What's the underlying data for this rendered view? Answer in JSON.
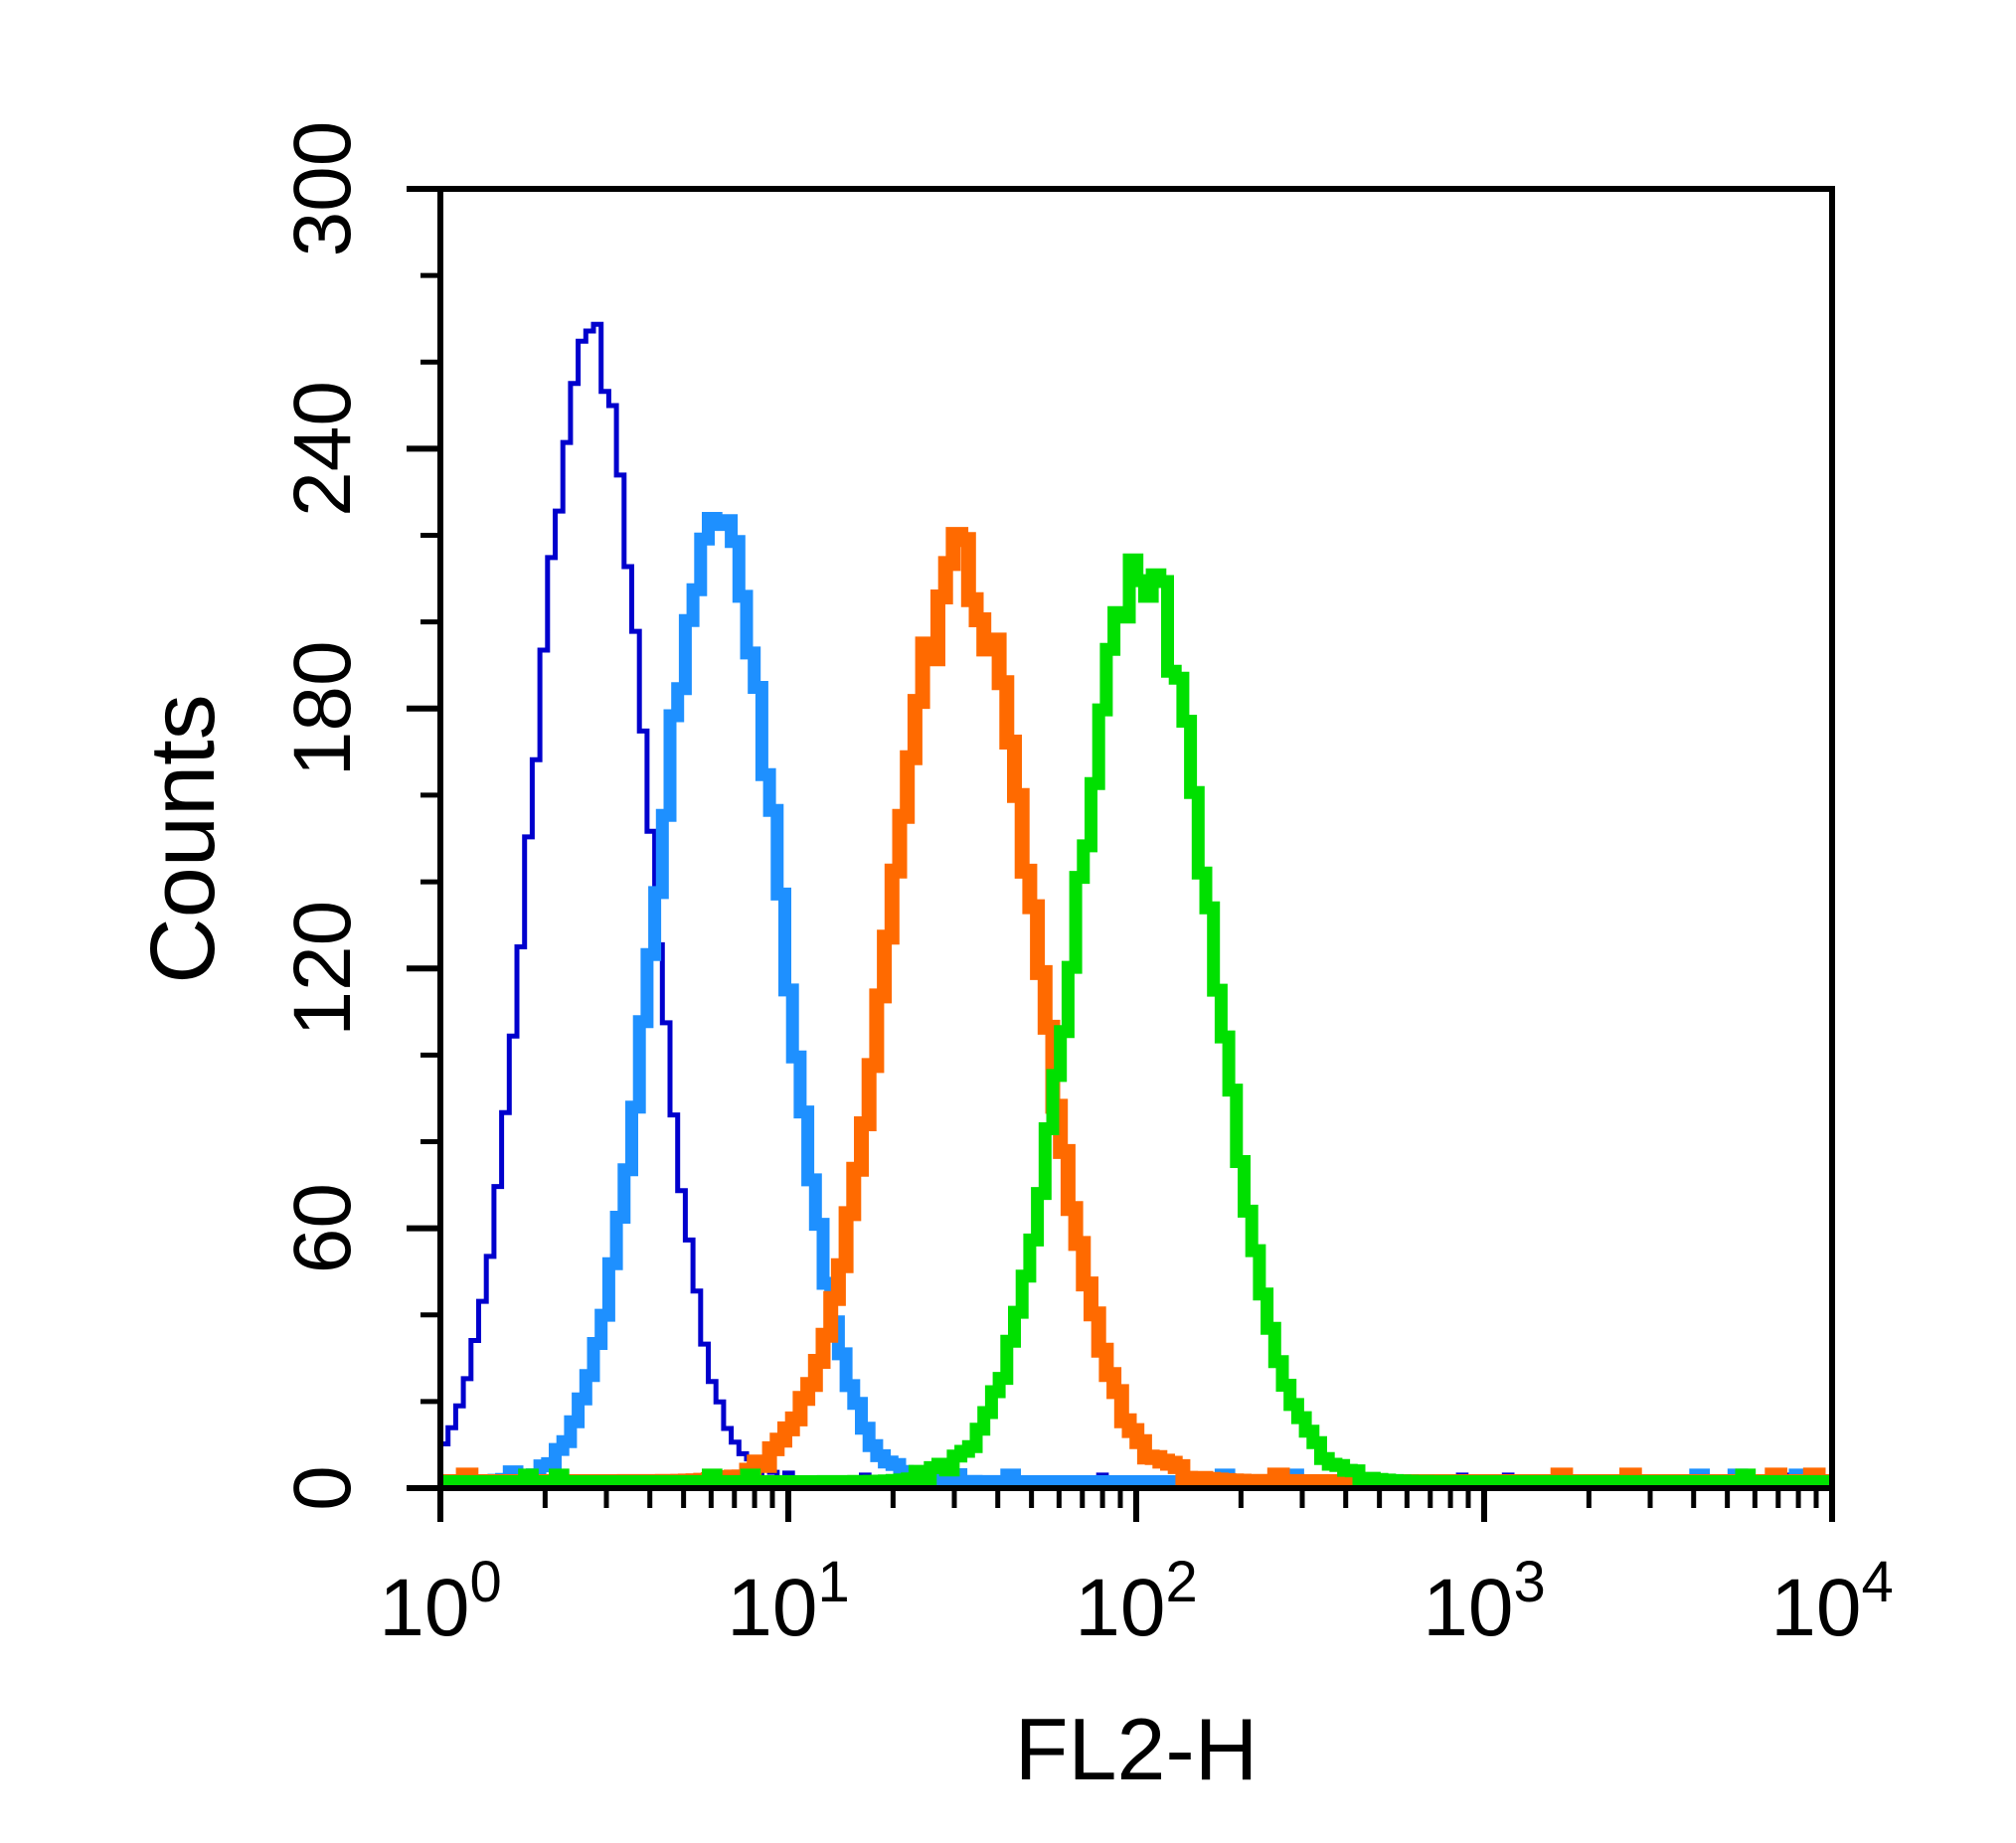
{
  "chart_data": {
    "type": "line",
    "subtype": "flow-cytometry-histogram-overlay",
    "title": "",
    "xlabel": "FL2-H",
    "ylabel": "Counts",
    "x_scale": "log10",
    "x_range": [
      1,
      10000
    ],
    "x_major_ticks_exponents": [
      0,
      1,
      2,
      3,
      4
    ],
    "x_major_tick_labels": [
      "10^0",
      "10^1",
      "10^2",
      "10^3",
      "10^4"
    ],
    "y_range": [
      0,
      300
    ],
    "y_major_ticks": [
      0,
      60,
      120,
      180,
      240,
      300
    ],
    "y_minor_tick_step": 20,
    "grid": "off",
    "legend": "none",
    "frame_color": "#000000",
    "background_color": "#ffffff",
    "generator": {
      "bin_width_log10": 0.022,
      "noise_fraction": 0.035,
      "noise_min": 1.5,
      "baseline_counts": 1.5
    },
    "series": [
      {
        "name": "dark-blue",
        "color": "#0000CD",
        "line_width": 5,
        "seed": 11,
        "log10_peak": 0.43,
        "peak_x": 2.7,
        "sigma_log10": 0.16,
        "peak_counts": 268
      },
      {
        "name": "light-blue",
        "color": "#1E90FF",
        "line_width": 13,
        "seed": 22,
        "log10_peak": 0.8,
        "peak_x": 6.3,
        "sigma_log10": 0.175,
        "peak_counts": 227
      },
      {
        "name": "orange",
        "color": "#FF6A00",
        "line_width": 15,
        "seed": 33,
        "log10_peak": 1.5,
        "peak_x": 31.6,
        "sigma_log10": 0.205,
        "peak_counts": 212
      },
      {
        "name": "green",
        "color": "#00E000",
        "line_width": 13,
        "seed": 44,
        "log10_peak": 2.02,
        "peak_x": 105,
        "sigma_log10": 0.195,
        "peak_counts": 211
      }
    ]
  }
}
